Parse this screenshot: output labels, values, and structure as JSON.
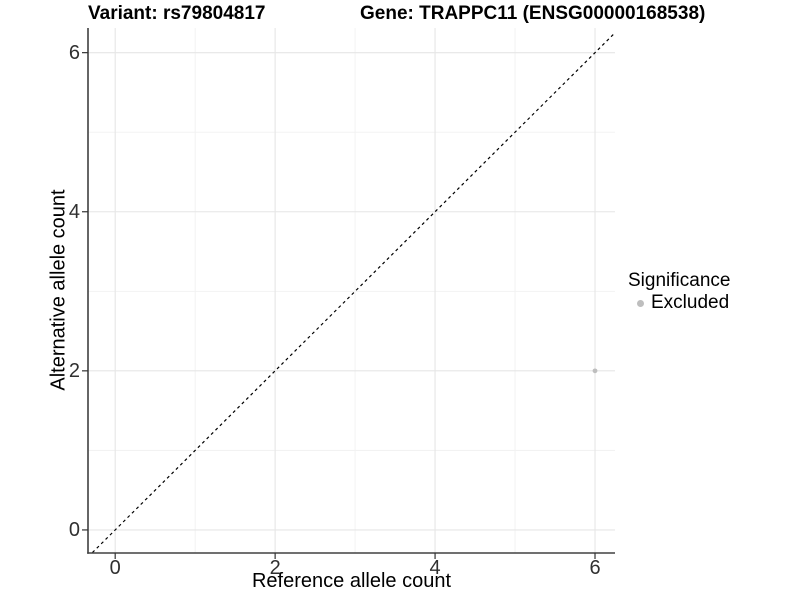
{
  "chart_data": {
    "type": "scatter",
    "title_left": "Variant: rs79804817",
    "title_right": "Gene: TRAPPC11 (ENSG00000168538)",
    "xlabel": "Reference allele count",
    "ylabel": "Alternative allele count",
    "xlim": [
      -0.34,
      6.25
    ],
    "ylim": [
      -0.29,
      6.31
    ],
    "x_ticks": [
      0,
      2,
      4,
      6
    ],
    "y_ticks": [
      0,
      2,
      4,
      6
    ],
    "x_minor_ticks": [
      1,
      3,
      5
    ],
    "y_minor_ticks": [
      1,
      3,
      5
    ],
    "grid": "major+minor",
    "points": [
      {
        "x": 6,
        "y": 2,
        "series": "Excluded"
      }
    ],
    "reference_line": {
      "type": "identity",
      "slope": 1,
      "intercept": 0,
      "style": "dashed"
    },
    "legend": {
      "title": "Significance",
      "position": "right",
      "entries": [
        {
          "label": "Excluded",
          "color": "#bebebe"
        }
      ]
    },
    "colors": {
      "background": "#ffffff",
      "point": "#bebebe",
      "grid_major": "#e6e6e6",
      "grid_minor": "#f1f1f1",
      "axis_line": "#404040",
      "tick_mark": "#333333",
      "tick_label": "#303030",
      "reference_line": "#000000"
    }
  }
}
